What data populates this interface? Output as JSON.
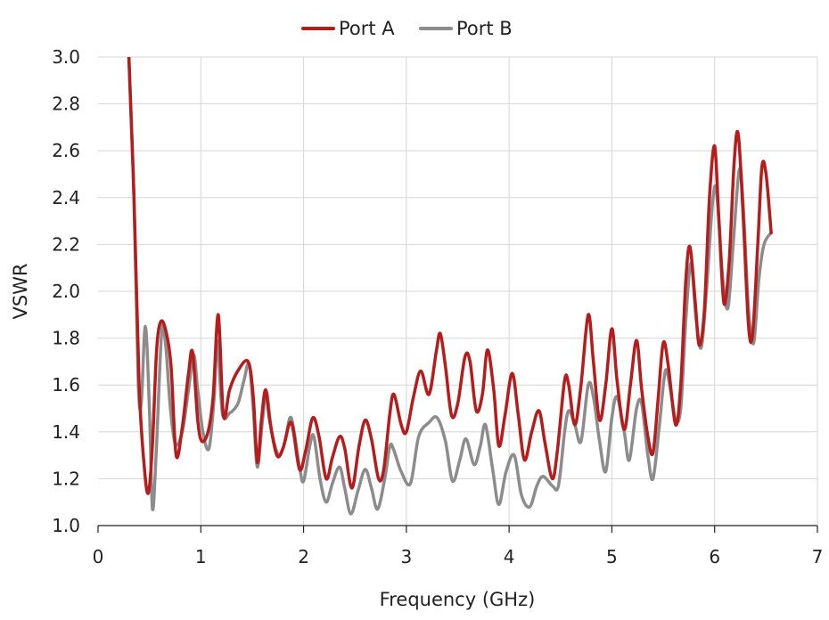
{
  "chart_data": {
    "type": "line",
    "xlabel": "Frequency (GHz)",
    "ylabel": "VSWR",
    "xlim": [
      0,
      7
    ],
    "ylim": [
      1.0,
      3.0
    ],
    "x_ticks": [
      0,
      1,
      2,
      3,
      4,
      5,
      6,
      7
    ],
    "y_ticks": [
      1.0,
      1.2,
      1.4,
      1.6,
      1.8,
      2.0,
      2.2,
      2.4,
      2.6,
      2.8,
      3.0
    ],
    "grid": true,
    "legend_position": "top-center",
    "series": [
      {
        "name": "Port A",
        "color": "#b71c1c",
        "points": [
          [
            0.3,
            3.0
          ],
          [
            0.35,
            2.4
          ],
          [
            0.4,
            1.6
          ],
          [
            0.45,
            1.25
          ],
          [
            0.49,
            1.14
          ],
          [
            0.53,
            1.35
          ],
          [
            0.57,
            1.75
          ],
          [
            0.61,
            1.87
          ],
          [
            0.66,
            1.83
          ],
          [
            0.71,
            1.68
          ],
          [
            0.76,
            1.3
          ],
          [
            0.82,
            1.42
          ],
          [
            0.88,
            1.65
          ],
          [
            0.92,
            1.74
          ],
          [
            0.97,
            1.45
          ],
          [
            1.01,
            1.36
          ],
          [
            1.07,
            1.4
          ],
          [
            1.12,
            1.55
          ],
          [
            1.17,
            1.9
          ],
          [
            1.22,
            1.47
          ],
          [
            1.28,
            1.58
          ],
          [
            1.36,
            1.66
          ],
          [
            1.46,
            1.7
          ],
          [
            1.51,
            1.55
          ],
          [
            1.55,
            1.27
          ],
          [
            1.59,
            1.45
          ],
          [
            1.63,
            1.58
          ],
          [
            1.67,
            1.45
          ],
          [
            1.74,
            1.3
          ],
          [
            1.8,
            1.33
          ],
          [
            1.88,
            1.44
          ],
          [
            1.96,
            1.24
          ],
          [
            2.02,
            1.32
          ],
          [
            2.09,
            1.46
          ],
          [
            2.15,
            1.38
          ],
          [
            2.22,
            1.2
          ],
          [
            2.28,
            1.29
          ],
          [
            2.35,
            1.38
          ],
          [
            2.4,
            1.33
          ],
          [
            2.47,
            1.16
          ],
          [
            2.54,
            1.34
          ],
          [
            2.6,
            1.45
          ],
          [
            2.66,
            1.37
          ],
          [
            2.73,
            1.2
          ],
          [
            2.78,
            1.24
          ],
          [
            2.84,
            1.48
          ],
          [
            2.88,
            1.56
          ],
          [
            2.95,
            1.43
          ],
          [
            3.0,
            1.4
          ],
          [
            3.07,
            1.55
          ],
          [
            3.14,
            1.66
          ],
          [
            3.22,
            1.56
          ],
          [
            3.29,
            1.74
          ],
          [
            3.33,
            1.82
          ],
          [
            3.38,
            1.68
          ],
          [
            3.44,
            1.47
          ],
          [
            3.5,
            1.52
          ],
          [
            3.57,
            1.72
          ],
          [
            3.62,
            1.7
          ],
          [
            3.68,
            1.49
          ],
          [
            3.74,
            1.56
          ],
          [
            3.79,
            1.75
          ],
          [
            3.85,
            1.58
          ],
          [
            3.9,
            1.34
          ],
          [
            3.96,
            1.47
          ],
          [
            4.03,
            1.65
          ],
          [
            4.09,
            1.47
          ],
          [
            4.15,
            1.28
          ],
          [
            4.22,
            1.4
          ],
          [
            4.29,
            1.49
          ],
          [
            4.35,
            1.35
          ],
          [
            4.42,
            1.2
          ],
          [
            4.47,
            1.32
          ],
          [
            4.54,
            1.62
          ],
          [
            4.58,
            1.6
          ],
          [
            4.64,
            1.43
          ],
          [
            4.7,
            1.6
          ],
          [
            4.77,
            1.9
          ],
          [
            4.82,
            1.7
          ],
          [
            4.88,
            1.45
          ],
          [
            4.94,
            1.6
          ],
          [
            5.0,
            1.84
          ],
          [
            5.05,
            1.62
          ],
          [
            5.12,
            1.41
          ],
          [
            5.18,
            1.6
          ],
          [
            5.24,
            1.79
          ],
          [
            5.29,
            1.58
          ],
          [
            5.35,
            1.38
          ],
          [
            5.4,
            1.31
          ],
          [
            5.45,
            1.54
          ],
          [
            5.5,
            1.78
          ],
          [
            5.55,
            1.68
          ],
          [
            5.62,
            1.43
          ],
          [
            5.67,
            1.6
          ],
          [
            5.72,
            2.05
          ],
          [
            5.76,
            2.19
          ],
          [
            5.81,
            1.96
          ],
          [
            5.85,
            1.77
          ],
          [
            5.9,
            1.92
          ],
          [
            5.95,
            2.4
          ],
          [
            6.0,
            2.62
          ],
          [
            6.04,
            2.32
          ],
          [
            6.09,
            1.95
          ],
          [
            6.14,
            2.12
          ],
          [
            6.19,
            2.55
          ],
          [
            6.23,
            2.67
          ],
          [
            6.28,
            2.3
          ],
          [
            6.33,
            1.85
          ],
          [
            6.37,
            1.82
          ],
          [
            6.42,
            2.2
          ],
          [
            6.46,
            2.53
          ],
          [
            6.5,
            2.5
          ],
          [
            6.55,
            2.25
          ]
        ]
      },
      {
        "name": "Port B",
        "color": "#8c8c8c",
        "points": [
          [
            0.3,
            3.0
          ],
          [
            0.35,
            2.4
          ],
          [
            0.39,
            1.62
          ],
          [
            0.42,
            1.52
          ],
          [
            0.46,
            1.85
          ],
          [
            0.5,
            1.5
          ],
          [
            0.53,
            1.07
          ],
          [
            0.57,
            1.35
          ],
          [
            0.62,
            1.83
          ],
          [
            0.66,
            1.76
          ],
          [
            0.7,
            1.52
          ],
          [
            0.75,
            1.35
          ],
          [
            0.82,
            1.4
          ],
          [
            0.88,
            1.58
          ],
          [
            0.93,
            1.73
          ],
          [
            0.97,
            1.58
          ],
          [
            1.02,
            1.4
          ],
          [
            1.08,
            1.33
          ],
          [
            1.13,
            1.55
          ],
          [
            1.16,
            1.79
          ],
          [
            1.21,
            1.48
          ],
          [
            1.28,
            1.48
          ],
          [
            1.36,
            1.52
          ],
          [
            1.42,
            1.62
          ],
          [
            1.47,
            1.69
          ],
          [
            1.51,
            1.5
          ],
          [
            1.55,
            1.25
          ],
          [
            1.6,
            1.45
          ],
          [
            1.64,
            1.57
          ],
          [
            1.69,
            1.4
          ],
          [
            1.76,
            1.3
          ],
          [
            1.82,
            1.36
          ],
          [
            1.88,
            1.46
          ],
          [
            1.96,
            1.25
          ],
          [
            2.0,
            1.19
          ],
          [
            2.06,
            1.34
          ],
          [
            2.1,
            1.38
          ],
          [
            2.16,
            1.2
          ],
          [
            2.22,
            1.1
          ],
          [
            2.28,
            1.18
          ],
          [
            2.35,
            1.25
          ],
          [
            2.4,
            1.16
          ],
          [
            2.46,
            1.05
          ],
          [
            2.53,
            1.15
          ],
          [
            2.6,
            1.24
          ],
          [
            2.66,
            1.16
          ],
          [
            2.72,
            1.07
          ],
          [
            2.79,
            1.2
          ],
          [
            2.84,
            1.34
          ],
          [
            2.88,
            1.32
          ],
          [
            2.95,
            1.23
          ],
          [
            3.04,
            1.18
          ],
          [
            3.12,
            1.38
          ],
          [
            3.22,
            1.44
          ],
          [
            3.3,
            1.46
          ],
          [
            3.38,
            1.36
          ],
          [
            3.45,
            1.19
          ],
          [
            3.52,
            1.28
          ],
          [
            3.58,
            1.37
          ],
          [
            3.66,
            1.26
          ],
          [
            3.72,
            1.34
          ],
          [
            3.77,
            1.43
          ],
          [
            3.84,
            1.24
          ],
          [
            3.9,
            1.09
          ],
          [
            3.97,
            1.23
          ],
          [
            4.05,
            1.3
          ],
          [
            4.12,
            1.13
          ],
          [
            4.2,
            1.08
          ],
          [
            4.27,
            1.17
          ],
          [
            4.33,
            1.21
          ],
          [
            4.42,
            1.17
          ],
          [
            4.48,
            1.17
          ],
          [
            4.54,
            1.4
          ],
          [
            4.58,
            1.49
          ],
          [
            4.64,
            1.43
          ],
          [
            4.7,
            1.36
          ],
          [
            4.77,
            1.6
          ],
          [
            4.82,
            1.55
          ],
          [
            4.88,
            1.36
          ],
          [
            4.94,
            1.23
          ],
          [
            5.0,
            1.46
          ],
          [
            5.05,
            1.55
          ],
          [
            5.12,
            1.4
          ],
          [
            5.17,
            1.28
          ],
          [
            5.24,
            1.5
          ],
          [
            5.29,
            1.52
          ],
          [
            5.35,
            1.3
          ],
          [
            5.4,
            1.2
          ],
          [
            5.46,
            1.42
          ],
          [
            5.52,
            1.66
          ],
          [
            5.57,
            1.58
          ],
          [
            5.62,
            1.45
          ],
          [
            5.67,
            1.5
          ],
          [
            5.72,
            1.88
          ],
          [
            5.77,
            2.12
          ],
          [
            5.82,
            1.88
          ],
          [
            5.87,
            1.76
          ],
          [
            5.92,
            2.0
          ],
          [
            5.98,
            2.38
          ],
          [
            6.02,
            2.42
          ],
          [
            6.08,
            2.05
          ],
          [
            6.13,
            1.93
          ],
          [
            6.18,
            2.2
          ],
          [
            6.24,
            2.52
          ],
          [
            6.28,
            2.35
          ],
          [
            6.33,
            1.92
          ],
          [
            6.38,
            1.78
          ],
          [
            6.43,
            2.05
          ],
          [
            6.48,
            2.2
          ],
          [
            6.55,
            2.25
          ]
        ]
      }
    ]
  }
}
